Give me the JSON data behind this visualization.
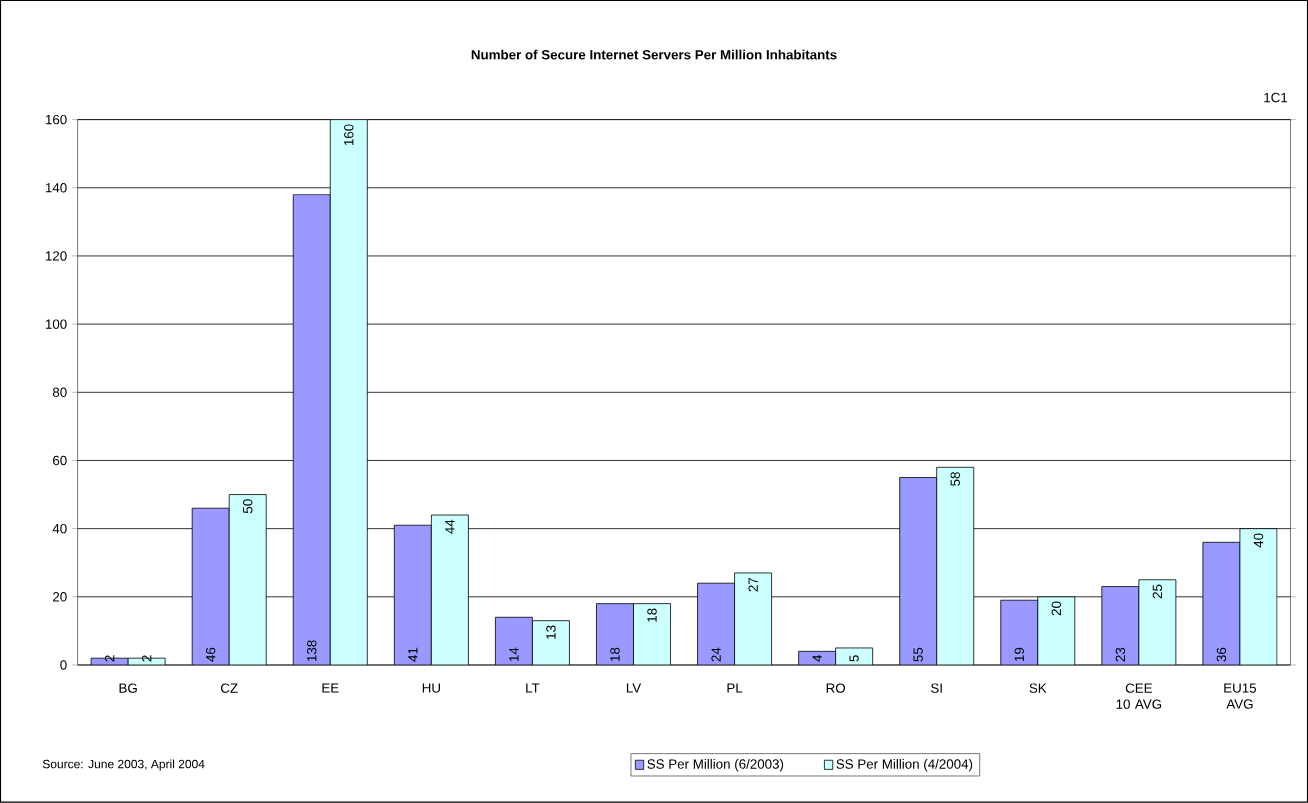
{
  "chart_data": {
    "type": "bar",
    "title": "Number of Secure Internet Servers Per Million Inhabitants",
    "categories": [
      "BG",
      "CZ",
      "EE",
      "HU",
      "LT",
      "LV",
      "PL",
      "RO",
      "SI",
      "SK",
      "CEE 10 AVG",
      "EU15 AVG"
    ],
    "series": [
      {
        "name": "SS Per Million (6/2003)",
        "color": "#9999ff",
        "values": [
          2,
          46,
          138,
          41,
          14,
          18,
          24,
          4,
          55,
          19,
          23,
          36
        ]
      },
      {
        "name": "SS Per Million (4/2004)",
        "color": "#ccffff",
        "values": [
          2,
          50,
          160,
          44,
          13,
          18,
          27,
          5,
          58,
          20,
          25,
          40
        ]
      }
    ],
    "ylim": [
      0,
      160
    ],
    "yticks": [
      0,
      20,
      40,
      60,
      80,
      100,
      120,
      140,
      160
    ],
    "grid": "y",
    "legend": "bottom",
    "data_labels": true,
    "annotations": [
      "1C1",
      "Source: June 2003, April 2004"
    ]
  }
}
